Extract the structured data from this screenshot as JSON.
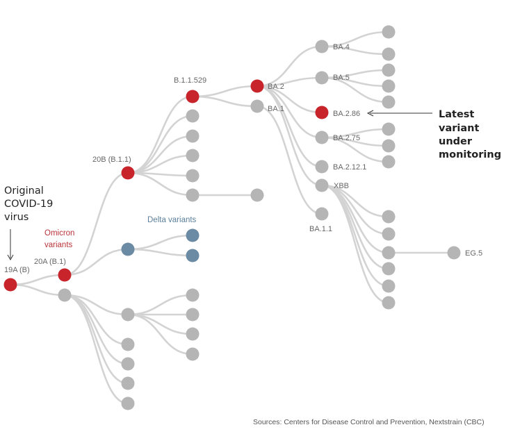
{
  "colors": {
    "edge": "#d3d3d3",
    "node_default": "#b5b5b5",
    "node_highlight": "#c8242b",
    "node_delta": "#6b8aa3",
    "omicron_text": "#b8333a",
    "delta_text": "#5b7f9a"
  },
  "annotations": {
    "origin_line1": "Original",
    "origin_line2": "COVID-19",
    "origin_line3": "virus",
    "omicron_line1": "Omicron",
    "omicron_line2": "variants",
    "delta": "Delta variants",
    "latest_line1": "Latest",
    "latest_line2": "variant",
    "latest_line3": "under",
    "latest_line4": "monitoring",
    "source": "Sources: Centers for Disease Control and Prevention, Nextstrain (CBC)"
  },
  "tree": {
    "nodes": [
      {
        "id": "19A",
        "label": "19A (B)",
        "type": "highlight"
      },
      {
        "id": "20A",
        "label": "20A (B.1)",
        "type": "highlight"
      },
      {
        "id": "20B",
        "label": "20B (B.1.1)",
        "type": "highlight"
      },
      {
        "id": "B.1.1.529",
        "label": "B.1.1.529",
        "type": "highlight"
      },
      {
        "id": "BA.2",
        "label": "BA.2",
        "type": "highlight"
      },
      {
        "id": "BA.1",
        "label": "BA.1",
        "type": "default"
      },
      {
        "id": "BA.4",
        "label": "BA.4",
        "type": "default"
      },
      {
        "id": "BA.5",
        "label": "BA.5",
        "type": "default"
      },
      {
        "id": "BA.2.86",
        "label": "BA.2.86",
        "type": "highlight"
      },
      {
        "id": "BA.2.75",
        "label": "BA.2.75",
        "type": "default"
      },
      {
        "id": "BA.2.12.1",
        "label": "BA.2.12.1",
        "type": "default"
      },
      {
        "id": "XBB",
        "label": "XBB",
        "type": "default"
      },
      {
        "id": "BA.1.1",
        "label": "BA.1.1",
        "type": "default"
      },
      {
        "id": "EG.5",
        "label": "EG.5",
        "type": "default"
      },
      {
        "id": "delta",
        "label": "",
        "type": "delta"
      },
      {
        "id": "delta-1",
        "label": "",
        "type": "delta"
      },
      {
        "id": "delta-2",
        "label": "",
        "type": "delta"
      }
    ]
  }
}
